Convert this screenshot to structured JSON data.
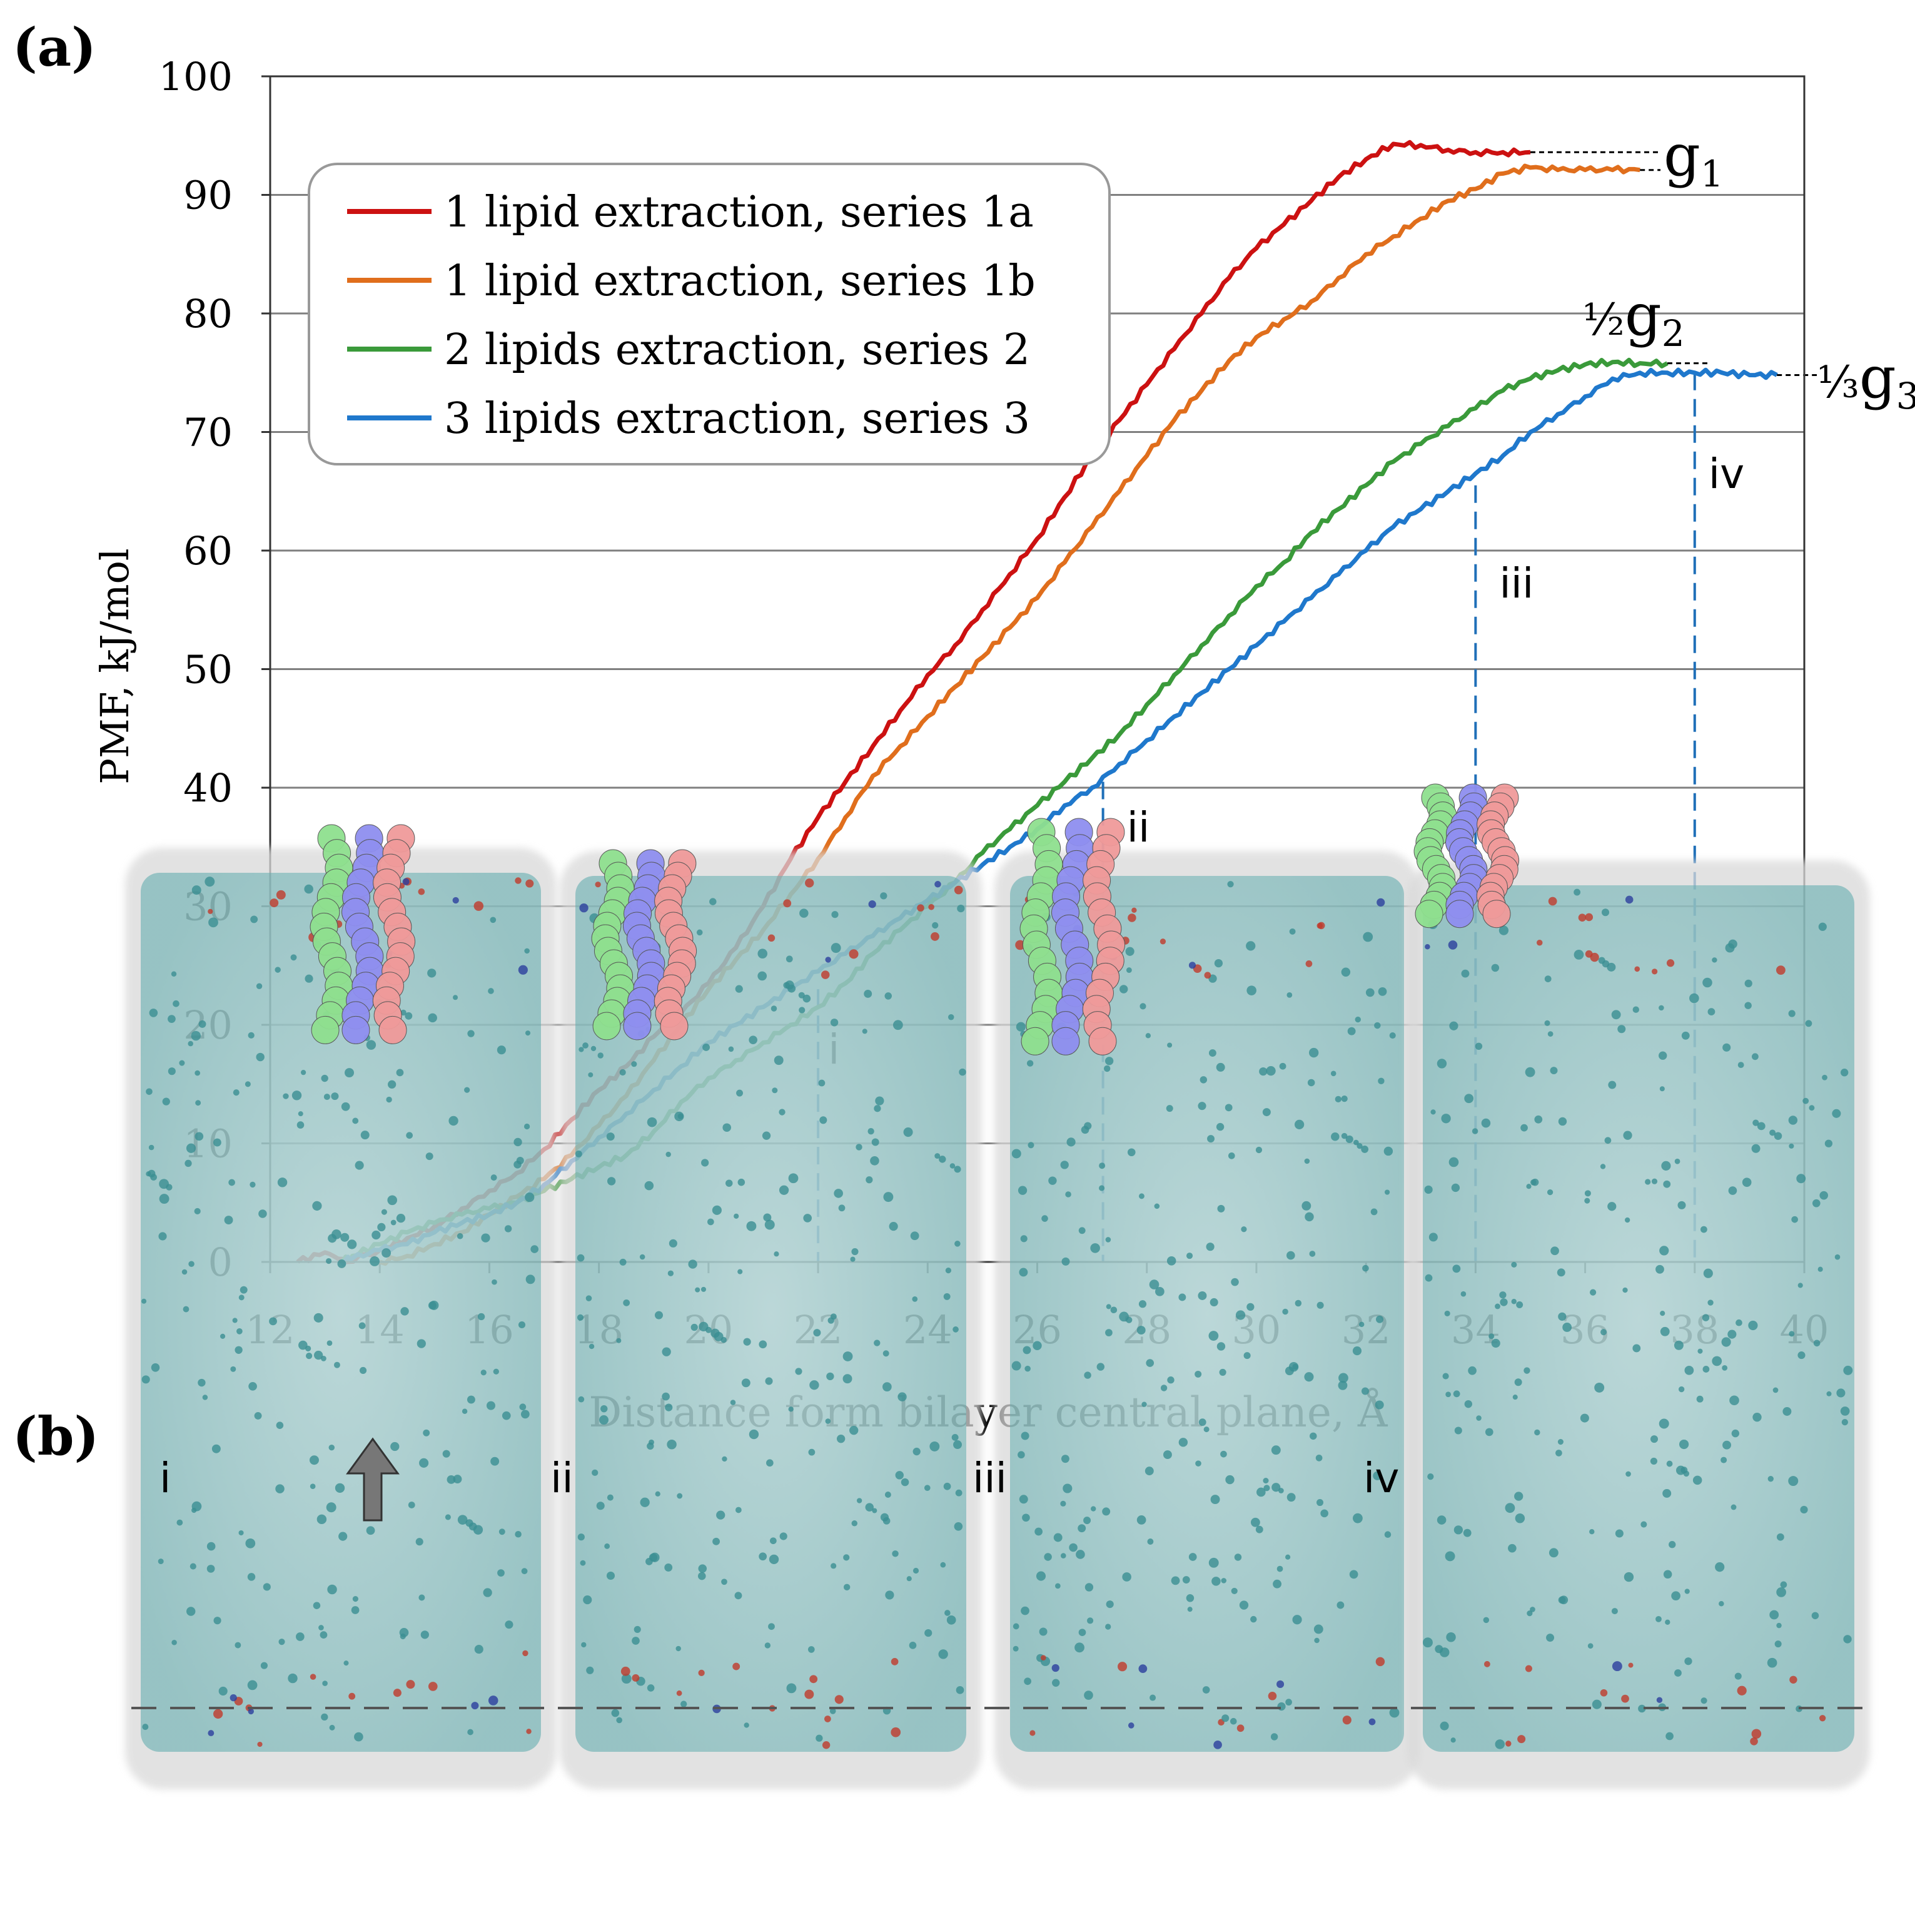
{
  "panel_a_label": "(a)",
  "panel_b_label": "(b)",
  "colors": {
    "series_1a": "#cc1111",
    "series_1b": "#e06e1c",
    "series_2": "#3a9a3a",
    "series_3": "#1f78cc",
    "marker_line": "#1f6fb8",
    "grid": "#7f7f7f"
  },
  "chart_data": {
    "type": "line",
    "xlabel": "Distance form bilayer central plane, Å",
    "ylabel": "PMF, kJ/mol",
    "xlim": [
      12,
      40
    ],
    "ylim": [
      0,
      100
    ],
    "xticks": [
      "12",
      "14",
      "16",
      "18",
      "20",
      "22",
      "24",
      "26",
      "28",
      "30",
      "32",
      "34",
      "36",
      "38",
      "40"
    ],
    "yticks": [
      "0",
      "10",
      "20",
      "30",
      "40",
      "50",
      "60",
      "70",
      "80",
      "90",
      "100"
    ],
    "legend_position": "top-left",
    "series": [
      {
        "name": "1 lipid  extraction, series 1a",
        "color_key": "series_1a",
        "x": [
          12.5,
          13.0,
          13.4,
          14.0,
          14.5,
          15.0,
          15.5,
          16.0,
          16.5,
          17.0,
          17.5,
          18.0,
          18.5,
          19.0,
          19.5,
          20.0,
          20.5,
          21.0,
          21.5,
          22.0,
          22.5,
          23.0,
          23.5,
          24.0,
          24.5,
          25.0,
          25.5,
          26.0,
          26.5,
          27.0,
          27.5,
          28.0,
          28.5,
          29.0,
          29.5,
          30.0,
          30.5,
          31.0,
          31.5,
          32.0,
          32.5,
          33.0,
          33.5,
          34.0,
          34.5,
          35.0
        ],
        "y": [
          0,
          0.8,
          0,
          1.0,
          2.0,
          3.0,
          4.5,
          6.0,
          7.5,
          9.5,
          12.0,
          14.5,
          16.5,
          19.0,
          21.0,
          23.5,
          26.5,
          30.0,
          34.0,
          37.5,
          40.5,
          43.5,
          46.5,
          49.5,
          52.0,
          55.0,
          58.0,
          61.0,
          64.5,
          68.0,
          71.0,
          74.0,
          77.0,
          80.0,
          83.0,
          85.5,
          87.5,
          89.5,
          91.5,
          93.0,
          94.3,
          94.2,
          93.8,
          93.6,
          93.6,
          93.6
        ]
      },
      {
        "name": "1 lipid  extraction, series 1b",
        "color_key": "series_1b",
        "x": [
          14.0,
          14.5,
          15.0,
          15.5,
          16.0,
          16.5,
          17.0,
          17.5,
          18.0,
          18.5,
          19.0,
          19.5,
          20.0,
          20.5,
          21.0,
          21.5,
          22.0,
          22.5,
          23.0,
          23.5,
          24.0,
          24.5,
          25.0,
          25.5,
          26.0,
          26.5,
          27.0,
          27.5,
          28.0,
          28.5,
          29.0,
          29.5,
          30.0,
          30.5,
          31.0,
          31.5,
          32.0,
          32.5,
          33.0,
          33.5,
          34.0,
          34.5,
          35.0,
          35.5,
          36.0,
          36.5,
          37.0
        ],
        "y": [
          0,
          0.5,
          1.5,
          2.5,
          4.0,
          5.5,
          7.0,
          9.0,
          11.5,
          14.0,
          17.0,
          20.0,
          23.0,
          25.5,
          28.0,
          31.0,
          34.0,
          37.5,
          41.0,
          43.5,
          46.0,
          48.5,
          51.0,
          53.5,
          56.0,
          59.0,
          62.0,
          65.0,
          68.0,
          71.0,
          73.5,
          76.0,
          78.0,
          79.5,
          81.0,
          83.0,
          85.0,
          86.5,
          88.0,
          89.5,
          90.5,
          91.8,
          92.3,
          92.1,
          92.1,
          92.1,
          92.1
        ]
      },
      {
        "name": "2 lipids  extraction, series 2",
        "color_key": "series_2",
        "x": [
          13.3,
          13.5,
          14.0,
          14.5,
          15.0,
          15.5,
          16.0,
          16.5,
          17.0,
          17.5,
          18.0,
          18.5,
          19.0,
          19.5,
          20.0,
          20.5,
          21.0,
          21.5,
          22.0,
          22.5,
          23.0,
          23.5,
          24.0,
          24.5,
          25.0,
          25.5,
          26.0,
          26.5,
          27.0,
          27.5,
          28.0,
          28.5,
          29.0,
          29.5,
          30.0,
          30.5,
          31.0,
          31.5,
          32.0,
          32.5,
          33.0,
          33.5,
          34.0,
          34.5,
          35.0,
          35.5,
          36.0,
          36.5,
          37.0,
          37.5
        ],
        "y": [
          0,
          0.5,
          1.5,
          2.5,
          3.3,
          4.0,
          4.5,
          5.0,
          6.0,
          7.0,
          8.0,
          9.0,
          11.0,
          13.5,
          15.5,
          17.0,
          18.5,
          20.0,
          21.5,
          23.5,
          26.0,
          28.0,
          30.0,
          32.0,
          34.5,
          36.5,
          38.5,
          40.5,
          42.5,
          44.5,
          47.0,
          49.5,
          52.0,
          54.5,
          57.0,
          59.0,
          61.5,
          63.5,
          65.5,
          67.5,
          69.0,
          70.5,
          72.0,
          73.5,
          74.5,
          75.2,
          75.7,
          75.9,
          75.8,
          75.8
        ]
      },
      {
        "name": "3 lipids  extraction, series 3",
        "color_key": "series_3",
        "x": [
          13.3,
          13.5,
          14.0,
          14.5,
          15.0,
          15.5,
          16.0,
          16.5,
          17.0,
          17.5,
          18.0,
          18.5,
          19.0,
          19.5,
          20.0,
          20.5,
          21.0,
          21.5,
          22.0,
          22.5,
          23.0,
          23.5,
          24.0,
          24.5,
          25.0,
          25.5,
          26.0,
          26.5,
          27.0,
          27.5,
          28.0,
          28.5,
          29.0,
          29.5,
          30.0,
          30.5,
          31.0,
          31.5,
          32.0,
          32.5,
          33.0,
          33.5,
          34.0,
          34.5,
          35.0,
          35.5,
          36.0,
          36.5,
          37.0,
          37.5,
          38.0,
          38.5,
          39.0,
          39.5
        ],
        "y": [
          0,
          0.3,
          1.0,
          1.5,
          2.5,
          3.3,
          4.0,
          5.0,
          6.5,
          8.5,
          10.5,
          12.5,
          14.5,
          16.5,
          18.5,
          20.0,
          21.5,
          23.0,
          24.5,
          26.0,
          27.5,
          29.0,
          30.5,
          32.0,
          33.5,
          35.0,
          36.5,
          38.5,
          40.0,
          42.0,
          44.0,
          46.0,
          48.0,
          50.0,
          52.0,
          54.0,
          56.0,
          58.0,
          60.0,
          62.0,
          63.5,
          65.0,
          66.5,
          68.0,
          70.0,
          71.5,
          73.0,
          74.5,
          75.0,
          75.0,
          75.0,
          75.0,
          74.8,
          74.8
        ]
      }
    ],
    "markers": [
      {
        "label": "i",
        "x": 22.0,
        "y_top": 23.0
      },
      {
        "label": "ii",
        "x": 27.2,
        "y_top": 40.5
      },
      {
        "label": "iii",
        "x": 34.0,
        "y_top": 65.5
      },
      {
        "label": "iv",
        "x": 38.0,
        "y_top": 75.0
      }
    ],
    "plateau_labels": [
      {
        "text": "g",
        "sub": "1",
        "pre": ""
      },
      {
        "text": "g",
        "sub": "2",
        "pre": "½"
      },
      {
        "text": "g",
        "sub": "3",
        "pre": "⅓"
      }
    ]
  },
  "panel_b": {
    "snapshots": [
      {
        "label": "i"
      },
      {
        "label": "ii"
      },
      {
        "label": "iii"
      },
      {
        "label": "iv"
      }
    ],
    "arrow_icon": "up-arrow-icon"
  }
}
